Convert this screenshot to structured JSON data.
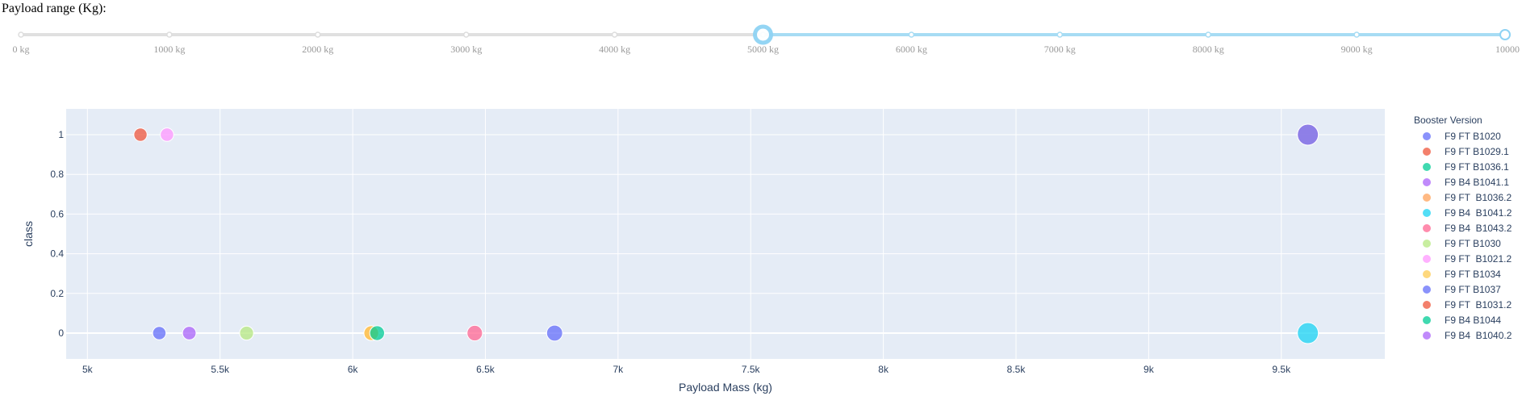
{
  "slider": {
    "label": "Payload range (Kg):",
    "min": 0,
    "max": 10000,
    "selected_range": [
      5000,
      10000
    ],
    "marks": [
      {
        "value": 0,
        "label": "0 kg"
      },
      {
        "value": 1000,
        "label": "1000 kg"
      },
      {
        "value": 2000,
        "label": "2000 kg"
      },
      {
        "value": 3000,
        "label": "3000 kg"
      },
      {
        "value": 4000,
        "label": "4000 kg"
      },
      {
        "value": 5000,
        "label": "5000 kg"
      },
      {
        "value": 6000,
        "label": "6000 kg"
      },
      {
        "value": 7000,
        "label": "7000 kg"
      },
      {
        "value": 8000,
        "label": "8000 kg"
      },
      {
        "value": 9000,
        "label": "9000 kg"
      },
      {
        "value": 10000,
        "label": "10000 kg"
      }
    ],
    "track_color": "#e0e0e0",
    "active_color": "#a7dcf4",
    "handle_color": "#8fd3f4"
  },
  "chart_data": {
    "type": "scatter",
    "title": "",
    "xlabel": "Payload Mass (kg)",
    "ylabel": "class",
    "xlim": [
      4920,
      9890
    ],
    "ylim": [
      -0.13,
      1.13
    ],
    "x_ticks": [
      {
        "value": 5000,
        "label": "5k"
      },
      {
        "value": 5500,
        "label": "5.5k"
      },
      {
        "value": 6000,
        "label": "6k"
      },
      {
        "value": 6500,
        "label": "6.5k"
      },
      {
        "value": 7000,
        "label": "7k"
      },
      {
        "value": 7500,
        "label": "7.5k"
      },
      {
        "value": 8000,
        "label": "8k"
      },
      {
        "value": 8500,
        "label": "8.5k"
      },
      {
        "value": 9000,
        "label": "9k"
      },
      {
        "value": 9500,
        "label": "9.5k"
      }
    ],
    "y_ticks": [
      {
        "value": 0,
        "label": "0"
      },
      {
        "value": 0.2,
        "label": "0.2"
      },
      {
        "value": 0.4,
        "label": "0.4"
      },
      {
        "value": 0.6,
        "label": "0.6"
      },
      {
        "value": 0.8,
        "label": "0.8"
      },
      {
        "value": 1,
        "label": "1"
      }
    ],
    "grid": true,
    "legend_title": "Booster Version",
    "legend_position": "right",
    "series": [
      {
        "name": "F9 FT B1020",
        "color": "#636efa",
        "points": [
          {
            "x": 5271,
            "y": 0
          }
        ]
      },
      {
        "name": "F9 FT B1029.1",
        "color": "#EF553B",
        "points": [
          {
            "x": 5200,
            "y": 1
          }
        ]
      },
      {
        "name": "F9 FT B1036.1",
        "color": "#00cc96",
        "points": [
          {
            "x": 9600,
            "y": 1
          }
        ]
      },
      {
        "name": "F9 B4 B1041.1",
        "color": "#ab63fa",
        "points": [
          {
            "x": 9600,
            "y": 1
          }
        ]
      },
      {
        "name": "F9 FT  B1036.2",
        "color": "#FFA15A",
        "points": [
          {
            "x": 6070,
            "y": 0
          }
        ]
      },
      {
        "name": "F9 B4  B1041.2",
        "color": "#19d3f3",
        "points": [
          {
            "x": 9600,
            "y": 0
          }
        ]
      },
      {
        "name": "F9 B4  B1043.2",
        "color": "#FF6692",
        "points": [
          {
            "x": 6460,
            "y": 0
          }
        ]
      },
      {
        "name": "F9 FT B1030",
        "color": "#B6E880",
        "points": [
          {
            "x": 5600,
            "y": 0
          }
        ]
      },
      {
        "name": "F9 FT  B1021.2",
        "color": "#FF97FF",
        "points": [
          {
            "x": 5300,
            "y": 1
          }
        ]
      },
      {
        "name": "F9 FT B1034",
        "color": "#FECB52",
        "points": [
          {
            "x": 6070,
            "y": 0
          }
        ]
      },
      {
        "name": "F9 FT B1037",
        "color": "#636efa",
        "points": [
          {
            "x": 6761,
            "y": 0
          }
        ]
      },
      {
        "name": "F9 FT  B1031.2",
        "color": "#EF553B",
        "points": []
      },
      {
        "name": "F9 B4 B1044",
        "color": "#00cc96",
        "points": [
          {
            "x": 6092,
            "y": 0
          }
        ]
      },
      {
        "name": "F9 B4  B1040.2",
        "color": "#ab63fa",
        "points": [
          {
            "x": 5384,
            "y": 0
          }
        ]
      }
    ],
    "plot_bg": "#e5ecf6"
  }
}
